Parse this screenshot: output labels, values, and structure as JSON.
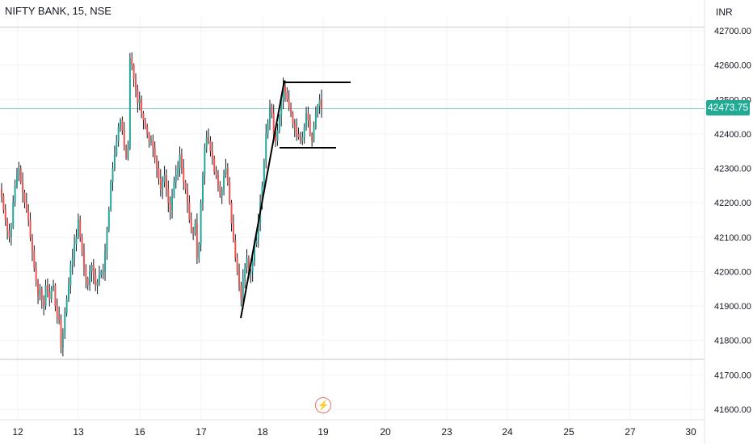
{
  "header": {
    "title": "NIFTY BANK, 15, NSE",
    "currency": "INR"
  },
  "last_price": {
    "label": "42473.75",
    "value": 42473.75,
    "color": "#22ab94"
  },
  "event_icon": "lightning-icon",
  "colors": {
    "up": "#26a69a",
    "down": "#ef5350",
    "wick": "#131722",
    "drawing": "#000000",
    "grid": "#f0f3fa",
    "last_price_line": "#22ab94"
  },
  "chart_data": {
    "type": "candlestick",
    "title": "NIFTY BANK, 15, NSE",
    "ylim": [
      41540,
      42740
    ],
    "yticks": [
      {
        "value": 42700,
        "label": "42700.00"
      },
      {
        "value": 42600,
        "label": "42600.00"
      },
      {
        "value": 42500,
        "label": "42500.00"
      },
      {
        "value": 42400,
        "label": "42400.00"
      },
      {
        "value": 42300,
        "label": "42300.00"
      },
      {
        "value": 42200,
        "label": "42200.00"
      },
      {
        "value": 42100,
        "label": "42100.00"
      },
      {
        "value": 42000,
        "label": "42000.00"
      },
      {
        "value": 41900,
        "label": "41900.00"
      },
      {
        "value": 41800,
        "label": "41800.00"
      },
      {
        "value": 41700,
        "label": "41700.00"
      },
      {
        "value": 41600,
        "label": "41600.00"
      }
    ],
    "xticks": [
      {
        "label": "12",
        "index": 0
      },
      {
        "label": "13",
        "index": 1
      },
      {
        "label": "16",
        "index": 2
      },
      {
        "label": "17",
        "index": 3
      },
      {
        "label": "18",
        "index": 4
      },
      {
        "label": "19",
        "index": 5
      },
      {
        "label": "20",
        "index": 6
      },
      {
        "label": "23",
        "index": 7
      },
      {
        "label": "24",
        "index": 8
      },
      {
        "label": "25",
        "index": 9
      },
      {
        "label": "27",
        "index": 10
      },
      {
        "label": "30",
        "index": 11
      }
    ],
    "period_high": 42710,
    "period_low": 41745,
    "closes": [
      42220,
      42180,
      42150,
      42120,
      42100,
      42130,
      42200,
      42250,
      42280,
      42300,
      42260,
      42230,
      42200,
      42180,
      42150,
      42100,
      42060,
      42010,
      41970,
      41930,
      41950,
      41920,
      41900,
      41960,
      41940,
      41920,
      41950,
      41960,
      41900,
      41870,
      41860,
      41780,
      41820,
      41880,
      41920,
      41960,
      42020,
      42040,
      42080,
      42100,
      42150,
      42100,
      42060,
      42010,
      41980,
      41960,
      42000,
      42020,
      41990,
      41960,
      41970,
      41990,
      42000,
      42000,
      42060,
      42120,
      42180,
      42260,
      42300,
      42340,
      42380,
      42420,
      42440,
      42410,
      42360,
      42330,
      42360,
      42620,
      42600,
      42560,
      42530,
      42490,
      42500,
      42460,
      42440,
      42420,
      42400,
      42380,
      42380,
      42360,
      42330,
      42300,
      42270,
      42240,
      42260,
      42280,
      42240,
      42200,
      42180,
      42220,
      42260,
      42280,
      42300,
      42340,
      42300,
      42260,
      42240,
      42200,
      42150,
      42120,
      42110,
      42140,
      42040,
      42080,
      42200,
      42280,
      42360,
      42390,
      42380,
      42350,
      42330,
      42290,
      42280,
      42250,
      42220,
      42240,
      42280,
      42300,
      42260,
      42200,
      42140,
      42090,
      42040,
      42000,
      41960,
      41920,
      41980,
      42010,
      42040,
      41990,
      42000,
      42030,
      42080,
      42090,
      42140,
      42200,
      42250,
      42320,
      42400,
      42430,
      42480,
      42460,
      42400,
      42380,
      42410,
      42450,
      42500,
      42540,
      42520,
      42500,
      42480,
      42460,
      42430,
      42420,
      42400,
      42390,
      42380,
      42390,
      42420,
      42460,
      42440,
      42400,
      42380,
      42420,
      42460,
      42480,
      42500,
      42474
    ],
    "drawings": [
      {
        "type": "trendline",
        "from": {
          "index": 5,
          "price": 41865
        },
        "to": {
          "index": 5,
          "price": 42555
        }
      },
      {
        "type": "horizontal-segment",
        "price": 42550
      },
      {
        "type": "horizontal-segment",
        "price": 42360
      }
    ]
  }
}
